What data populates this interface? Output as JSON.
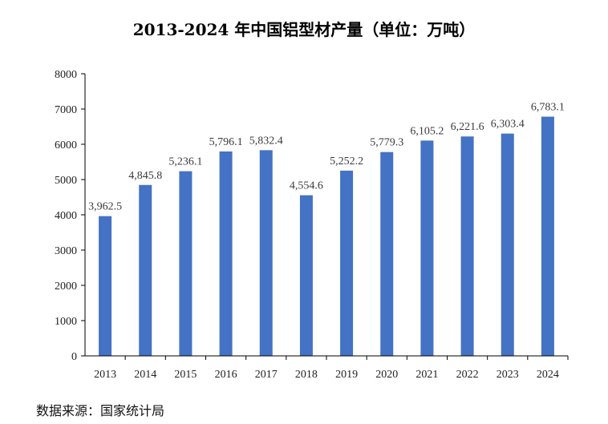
{
  "chart_data": {
    "type": "bar",
    "title": "2013-2024 年中国铝型材产量（单位：万吨）",
    "categories": [
      "2013",
      "2014",
      "2015",
      "2016",
      "2017",
      "2018",
      "2019",
      "2020",
      "2021",
      "2022",
      "2023",
      "2024"
    ],
    "values": [
      3962.5,
      4845.8,
      5236.1,
      5796.1,
      5832.4,
      4554.6,
      5252.2,
      5779.3,
      6105.2,
      6221.6,
      6303.4,
      6783.1
    ],
    "data_labels": [
      "3,962.5",
      "4,845.8",
      "5,236.1",
      "5,796.1",
      "5,832.4",
      "4,554.6",
      "5,252.2",
      "5,779.3",
      "6,105.2",
      "6,221.6",
      "6,303.4",
      "6,783.1"
    ],
    "y_ticks": [
      "0",
      "1000",
      "2000",
      "3000",
      "4000",
      "5000",
      "6000",
      "7000",
      "8000"
    ],
    "ylim": [
      0,
      8000
    ],
    "xlabel": "",
    "ylabel": "",
    "grid": false,
    "legend": "none",
    "bar_color": "#4472C4",
    "axis_color": "#000000"
  },
  "source_note": "数据来源：国家统计局"
}
